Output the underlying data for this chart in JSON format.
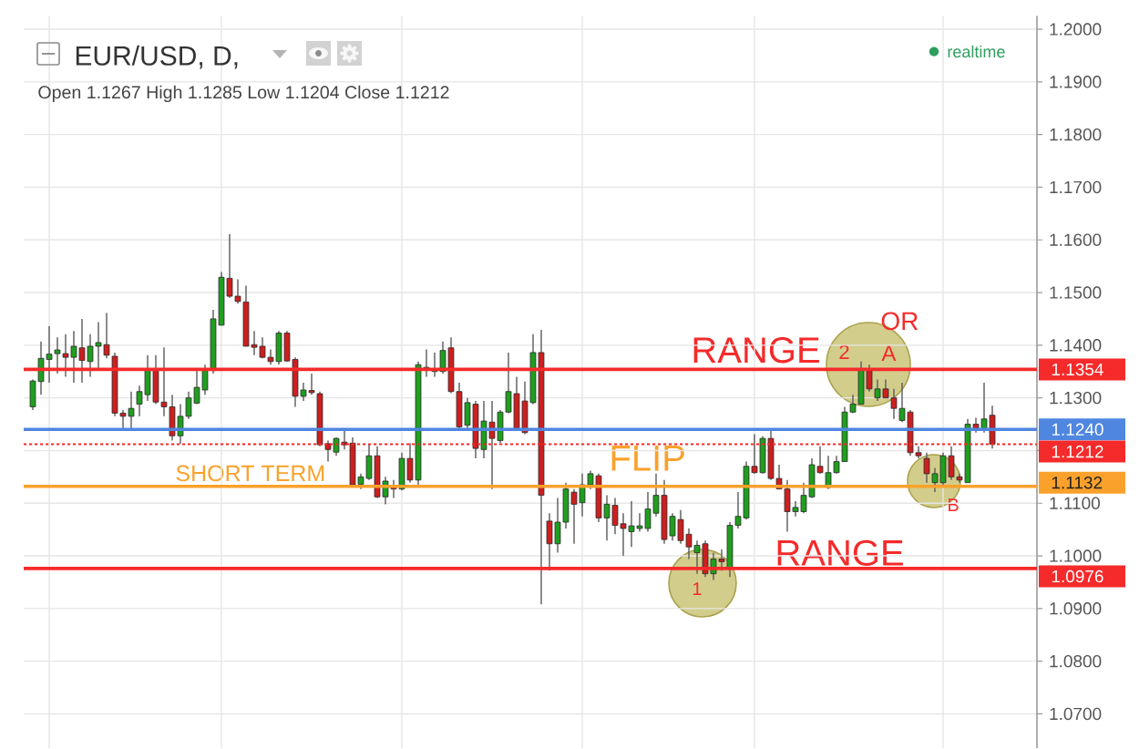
{
  "chart_data": {
    "type": "candlestick",
    "title": "EUR/USD, D,",
    "subtitle": "Open 1.1267 High 1.1285 Low 1.1204 Close 1.1212",
    "categories": [
      null,
      null,
      null,
      null,
      null,
      null,
      null,
      null,
      null,
      null,
      null,
      null,
      null,
      null,
      null,
      null,
      null,
      null,
      null,
      null,
      null,
      null,
      null,
      null,
      null,
      null,
      null,
      null,
      null,
      null,
      null,
      null,
      null,
      null,
      null,
      null,
      null,
      null,
      null,
      null,
      null,
      null,
      null,
      null,
      null,
      null,
      null,
      null,
      null,
      null,
      null,
      null,
      null,
      null,
      null,
      null,
      null,
      null,
      null,
      null,
      null,
      null,
      null,
      null,
      null,
      null,
      null,
      null,
      null,
      null,
      null,
      null,
      null,
      null,
      null,
      null,
      null,
      null,
      null,
      null,
      null,
      null,
      null,
      null,
      null,
      null,
      null,
      null,
      null,
      null,
      null,
      null,
      null,
      null,
      null,
      null,
      null,
      null,
      null,
      null,
      null,
      null,
      null,
      null,
      null,
      null,
      null,
      null,
      null,
      null,
      null,
      null,
      null,
      null,
      null,
      null,
      null,
      null
    ],
    "ohlc": [
      [
        1.1283,
        1.1335,
        1.1277,
        1.1332
      ],
      [
        1.1331,
        1.1407,
        1.1306,
        1.1375
      ],
      [
        1.1373,
        1.1436,
        1.1329,
        1.1383
      ],
      [
        1.1384,
        1.1415,
        1.1346,
        1.1391
      ],
      [
        1.1384,
        1.1421,
        1.134,
        1.1377
      ],
      [
        1.1377,
        1.1427,
        1.1329,
        1.1398
      ],
      [
        1.1395,
        1.145,
        1.1329,
        1.1371
      ],
      [
        1.1369,
        1.1421,
        1.134,
        1.1398
      ],
      [
        1.1398,
        1.1444,
        1.1352,
        1.1405
      ],
      [
        1.1401,
        1.1461,
        1.1375,
        1.1381
      ],
      [
        1.1379,
        1.1386,
        1.1265,
        1.1271
      ],
      [
        1.1271,
        1.1277,
        1.1237,
        1.1265
      ],
      [
        1.1265,
        1.1312,
        1.1242,
        1.128
      ],
      [
        1.1288,
        1.1323,
        1.1265,
        1.1312
      ],
      [
        1.1306,
        1.1381,
        1.1294,
        1.1354
      ],
      [
        1.1354,
        1.1381,
        1.1288,
        1.1292
      ],
      [
        1.1292,
        1.1396,
        1.1265,
        1.1283
      ],
      [
        1.1283,
        1.1306,
        1.1219,
        1.1228
      ],
      [
        1.1228,
        1.1288,
        1.1213,
        1.1265
      ],
      [
        1.1265,
        1.1312,
        1.126,
        1.13
      ],
      [
        1.129,
        1.1352,
        1.1288,
        1.132
      ],
      [
        1.1315,
        1.1363,
        1.1306,
        1.1352
      ],
      [
        1.1352,
        1.1467,
        1.1346,
        1.145
      ],
      [
        1.1438,
        1.1539,
        1.1438,
        1.1529
      ],
      [
        1.1527,
        1.1611,
        1.149,
        1.1493
      ],
      [
        1.1493,
        1.1525,
        1.1479,
        1.1483
      ],
      [
        1.1482,
        1.1513,
        1.1398,
        1.1398
      ],
      [
        1.1401,
        1.1427,
        1.1381,
        1.1396
      ],
      [
        1.1398,
        1.1415,
        1.1375,
        1.1377
      ],
      [
        1.1377,
        1.1392,
        1.1363,
        1.1369
      ],
      [
        1.1369,
        1.1427,
        1.1363,
        1.1423
      ],
      [
        1.1423,
        1.1427,
        1.1369,
        1.137
      ],
      [
        1.1373,
        1.1377,
        1.1283,
        1.1303
      ],
      [
        1.1303,
        1.1329,
        1.1294,
        1.1315
      ],
      [
        1.1314,
        1.1346,
        1.1306,
        1.131
      ],
      [
        1.1308,
        1.1312,
        1.1208,
        1.1211
      ],
      [
        1.1213,
        1.1219,
        1.1179,
        1.1202
      ],
      [
        1.1197,
        1.1225,
        1.119,
        1.1223
      ],
      [
        1.1216,
        1.1242,
        1.1202,
        1.1211
      ],
      [
        1.1214,
        1.1225,
        1.1133,
        1.1135
      ],
      [
        1.1136,
        1.1156,
        1.1127,
        1.115
      ],
      [
        1.1147,
        1.1211,
        1.1144,
        1.119
      ],
      [
        1.119,
        1.1208,
        1.111,
        1.1112
      ],
      [
        1.1112,
        1.115,
        1.1098,
        1.1142
      ],
      [
        1.1133,
        1.1144,
        1.111,
        1.1127
      ],
      [
        1.1127,
        1.1196,
        1.1124,
        1.1185
      ],
      [
        1.1185,
        1.1214,
        1.1139,
        1.1144
      ],
      [
        1.1144,
        1.1369,
        1.1133,
        1.1363
      ],
      [
        1.1352,
        1.1392,
        1.134,
        1.1358
      ],
      [
        1.135,
        1.1386,
        1.134,
        1.1355
      ],
      [
        1.135,
        1.1407,
        1.1346,
        1.139
      ],
      [
        1.1395,
        1.1415,
        1.1309,
        1.1312
      ],
      [
        1.1312,
        1.1329,
        1.1242,
        1.1245
      ],
      [
        1.1248,
        1.13,
        1.1242,
        1.1291
      ],
      [
        1.1288,
        1.1294,
        1.1185,
        1.1204
      ],
      [
        1.1202,
        1.1294,
        1.1185,
        1.1256
      ],
      [
        1.1254,
        1.1294,
        1.1127,
        1.1223
      ],
      [
        1.1219,
        1.1277,
        1.1214,
        1.1273
      ],
      [
        1.1273,
        1.1386,
        1.1271,
        1.1312
      ],
      [
        1.1308,
        1.134,
        1.1242,
        1.1242
      ],
      [
        1.1294,
        1.1331,
        1.1231,
        1.1234
      ],
      [
        1.1291,
        1.1421,
        1.1288,
        1.1386
      ],
      [
        1.1386,
        1.1429,
        1.0908,
        1.1115
      ],
      [
        1.1066,
        1.1081,
        1.0972,
        1.1023
      ],
      [
        1.1023,
        1.111,
        1.1006,
        1.1064
      ],
      [
        1.1064,
        1.1139,
        1.1052,
        1.1127
      ],
      [
        1.1121,
        1.1127,
        1.1023,
        1.1098
      ],
      [
        1.1101,
        1.1156,
        1.1075,
        1.1135
      ],
      [
        1.1135,
        1.1162,
        1.1127,
        1.1156
      ],
      [
        1.1152,
        1.1156,
        1.1064,
        1.1072
      ],
      [
        1.1072,
        1.1115,
        1.1029,
        1.1098
      ],
      [
        1.1096,
        1.111,
        1.1041,
        1.1058
      ],
      [
        1.1061,
        1.1081,
        1.1,
        1.1052
      ],
      [
        1.1046,
        1.1104,
        1.1017,
        1.1057
      ],
      [
        1.1052,
        1.1081,
        1.1046,
        1.1057
      ],
      [
        1.1052,
        1.1121,
        1.1046,
        1.1089
      ],
      [
        1.1081,
        1.1156,
        1.1075,
        1.1115
      ],
      [
        1.1115,
        1.1144,
        1.1023,
        1.1031
      ],
      [
        1.1038,
        1.1081,
        1.1029,
        1.1075
      ],
      [
        1.1069,
        1.1087,
        1.1023,
        1.1029
      ],
      [
        1.1041,
        1.1052,
        1.0994,
        1.1017
      ],
      [
        1.1006,
        1.1029,
        1.0966,
        1.102
      ],
      [
        1.1023,
        1.1029,
        1.096,
        1.0966
      ],
      [
        1.0966,
        1.1006,
        1.0954,
        1.0994
      ],
      [
        1.0994,
        1.1012,
        1.0972,
        1.0989
      ],
      [
        1.0977,
        1.1064,
        1.096,
        1.1058
      ],
      [
        1.1058,
        1.1121,
        1.1052,
        1.1075
      ],
      [
        1.1072,
        1.1179,
        1.1069,
        1.117
      ],
      [
        1.117,
        1.1231,
        1.1156,
        1.1158
      ],
      [
        1.1158,
        1.1227,
        1.1156,
        1.1223
      ],
      [
        1.1223,
        1.1237,
        1.1144,
        1.1147
      ],
      [
        1.1147,
        1.1173,
        1.1127,
        1.1127
      ],
      [
        1.1127,
        1.1144,
        1.1046,
        1.1084
      ],
      [
        1.1084,
        1.1104,
        1.1075,
        1.1092
      ],
      [
        1.1084,
        1.1139,
        1.1081,
        1.1115
      ],
      [
        1.1112,
        1.1185,
        1.111,
        1.1173
      ],
      [
        1.117,
        1.1208,
        1.1156,
        1.1158
      ],
      [
        1.113,
        1.119,
        1.1127,
        1.1158
      ],
      [
        1.1158,
        1.119,
        1.1156,
        1.1179
      ],
      [
        1.1179,
        1.1283,
        1.1179,
        1.1273
      ],
      [
        1.1273,
        1.1306,
        1.1271,
        1.1288
      ],
      [
        1.1288,
        1.1369,
        1.1288,
        1.1352
      ],
      [
        1.1352,
        1.1363,
        1.1312,
        1.1317
      ],
      [
        1.13,
        1.1335,
        1.1294,
        1.1317
      ],
      [
        1.1317,
        1.1335,
        1.13,
        1.13
      ],
      [
        1.13,
        1.1317,
        1.126,
        1.128
      ],
      [
        1.1257,
        1.1329,
        1.1254,
        1.128
      ],
      [
        1.1273,
        1.1277,
        1.119,
        1.1196
      ],
      [
        1.1196,
        1.1208,
        1.1185,
        1.119
      ],
      [
        1.1185,
        1.1196,
        1.1139,
        1.1156
      ],
      [
        1.1139,
        1.1167,
        1.1121,
        1.1156
      ],
      [
        1.1139,
        1.1196,
        1.1133,
        1.119
      ],
      [
        1.119,
        1.1208,
        1.1144,
        1.115
      ],
      [
        1.115,
        1.1156,
        1.1139,
        1.1144
      ],
      [
        1.1139,
        1.126,
        1.1139,
        1.125
      ],
      [
        1.125,
        1.1262,
        1.1234,
        1.1242
      ],
      [
        1.1239,
        1.1329,
        1.1234,
        1.126
      ],
      [
        1.1267,
        1.1285,
        1.1204,
        1.1212
      ]
    ],
    "colors": [
      "#1f9e1f",
      "#1f9e1f",
      "#1f9e1f",
      "#1f9e1f",
      "#cc1f1f",
      "#1f9e1f",
      "#cc1f1f",
      "#1f9e1f",
      "#1f9e1f",
      "#cc1f1f",
      "#cc1f1f",
      "#cc1f1f",
      "#1f9e1f",
      "#1f9e1f",
      "#1f9e1f",
      "#cc1f1f",
      "#cc1f1f",
      "#cc1f1f",
      "#1f9e1f",
      "#1f9e1f",
      "#1f9e1f",
      "#1f9e1f",
      "#1f9e1f",
      "#1f9e1f",
      "#cc1f1f",
      "#cc1f1f",
      "#cc1f1f",
      "#cc1f1f",
      "#cc1f1f",
      "#cc1f1f",
      "#1f9e1f",
      "#cc1f1f",
      "#cc1f1f",
      "#1f9e1f",
      "#cc1f1f",
      "#cc1f1f",
      "#cc1f1f",
      "#1f9e1f",
      "#cc1f1f",
      "#cc1f1f",
      "#1f9e1f",
      "#1f9e1f",
      "#cc1f1f",
      "#1f9e1f",
      "#cc1f1f",
      "#1f9e1f",
      "#cc1f1f",
      "#1f9e1f",
      "#1f9e1f",
      "#1f9e1f",
      "#1f9e1f",
      "#cc1f1f",
      "#cc1f1f",
      "#1f9e1f",
      "#cc1f1f",
      "#1f9e1f",
      "#cc1f1f",
      "#1f9e1f",
      "#1f9e1f",
      "#cc1f1f",
      "#cc1f1f",
      "#1f9e1f",
      "#cc1f1f",
      "#cc1f1f",
      "#1f9e1f",
      "#1f9e1f",
      "#cc1f1f",
      "#1f9e1f",
      "#1f9e1f",
      "#cc1f1f",
      "#1f9e1f",
      "#cc1f1f",
      "#cc1f1f",
      "#1f9e1f",
      "#1f9e1f",
      "#1f9e1f",
      "#1f9e1f",
      "#cc1f1f",
      "#1f9e1f",
      "#cc1f1f",
      "#cc1f1f",
      "#1f9e1f",
      "#cc1f1f",
      "#1f9e1f",
      "#cc1f1f",
      "#1f9e1f",
      "#1f9e1f",
      "#1f9e1f",
      "#cc1f1f",
      "#1f9e1f",
      "#cc1f1f",
      "#cc1f1f",
      "#cc1f1f",
      "#1f9e1f",
      "#1f9e1f",
      "#1f9e1f",
      "#cc1f1f",
      "#1f9e1f",
      "#1f9e1f",
      "#1f9e1f",
      "#1f9e1f",
      "#1f9e1f",
      "#cc1f1f",
      "#1f9e1f",
      "#cc1f1f",
      "#cc1f1f",
      "#1f9e1f",
      "#cc1f1f",
      "#cc1f1f",
      "#cc1f1f",
      "#1f9e1f",
      "#1f9e1f",
      "#cc1f1f",
      "#cc1f1f",
      "#1f9e1f",
      "#cc1f1f",
      "#1f9e1f",
      "#cc1f1f"
    ],
    "ylim": [
      1.0635,
      1.2025
    ],
    "yticks": [
      {
        "value": 1.07,
        "label": "1.0700"
      },
      {
        "value": 1.08,
        "label": "1.0800"
      },
      {
        "value": 1.09,
        "label": "1.0900"
      },
      {
        "value": 1.1,
        "label": "1.1000"
      },
      {
        "value": 1.11,
        "label": "1.1100"
      },
      {
        "value": 1.12,
        "label": null
      },
      {
        "value": 1.13,
        "label": "1.1300"
      },
      {
        "value": 1.14,
        "label": "1.1400"
      },
      {
        "value": 1.15,
        "label": "1.1500"
      },
      {
        "value": 1.16,
        "label": "1.1600"
      },
      {
        "value": 1.17,
        "label": "1.1700"
      },
      {
        "value": 1.18,
        "label": "1.1800"
      },
      {
        "value": 1.19,
        "label": "1.1900"
      },
      {
        "value": 1.2,
        "label": "1.2000"
      }
    ],
    "grid": true,
    "tick_labels": "y",
    "ref_lines": [
      {
        "axis": "y",
        "value": 1.1354,
        "label": "1.1354",
        "color": "#f52a2a"
      },
      {
        "axis": "y",
        "value": 1.124,
        "label": "1.1240",
        "color": "#4f86e0"
      },
      {
        "axis": "y",
        "value": 1.1212,
        "label": "1.1212",
        "color": "#f52a2a",
        "line_style": "dotted"
      },
      {
        "axis": "y",
        "value": 1.1132,
        "label": "1.1132",
        "color": "#f9a12b"
      },
      {
        "axis": "y",
        "value": 1.0976,
        "label": "1.0976",
        "color": "#f52a2a"
      }
    ],
    "annotations": [
      "RANGE",
      "RANGE",
      "FLIP",
      "SHORT TERM",
      "OR",
      "A",
      "2",
      "1",
      "B",
      "realtime"
    ]
  }
}
